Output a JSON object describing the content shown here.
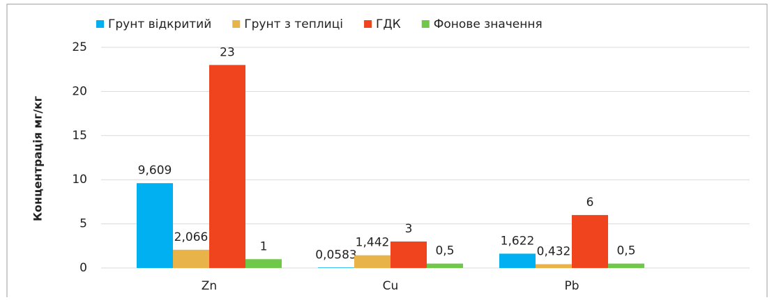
{
  "chart_data": {
    "type": "bar",
    "y_label": "Концентрація мг/кг",
    "categories": [
      "Zn",
      "Cu",
      "Pb"
    ],
    "series": [
      {
        "name": "Грунт відкритий",
        "color": "#00b0f0",
        "values": [
          9.609,
          0.0583,
          1.622
        ],
        "value_labels": [
          "9,609",
          "0,0583",
          "1,622"
        ]
      },
      {
        "name": "Грунт з теплиці",
        "color": "#e8b44a",
        "values": [
          2.066,
          1.442,
          0.432
        ],
        "value_labels": [
          "2,066",
          "1,442",
          "0,432"
        ]
      },
      {
        "name": "ГДК",
        "color": "#f0441f",
        "values": [
          23,
          3,
          6
        ]
      },
      {
        "name": "Фонове значення",
        "color": "#70c84a",
        "values": [
          1,
          0.5,
          0.5
        ],
        "value_labels": [
          "1",
          "0,5",
          "0,5"
        ]
      }
    ],
    "ylim": [
      0,
      25
    ],
    "yticks": [
      0,
      5,
      10,
      15,
      20,
      25
    ],
    "grid": true,
    "legend": "top"
  }
}
